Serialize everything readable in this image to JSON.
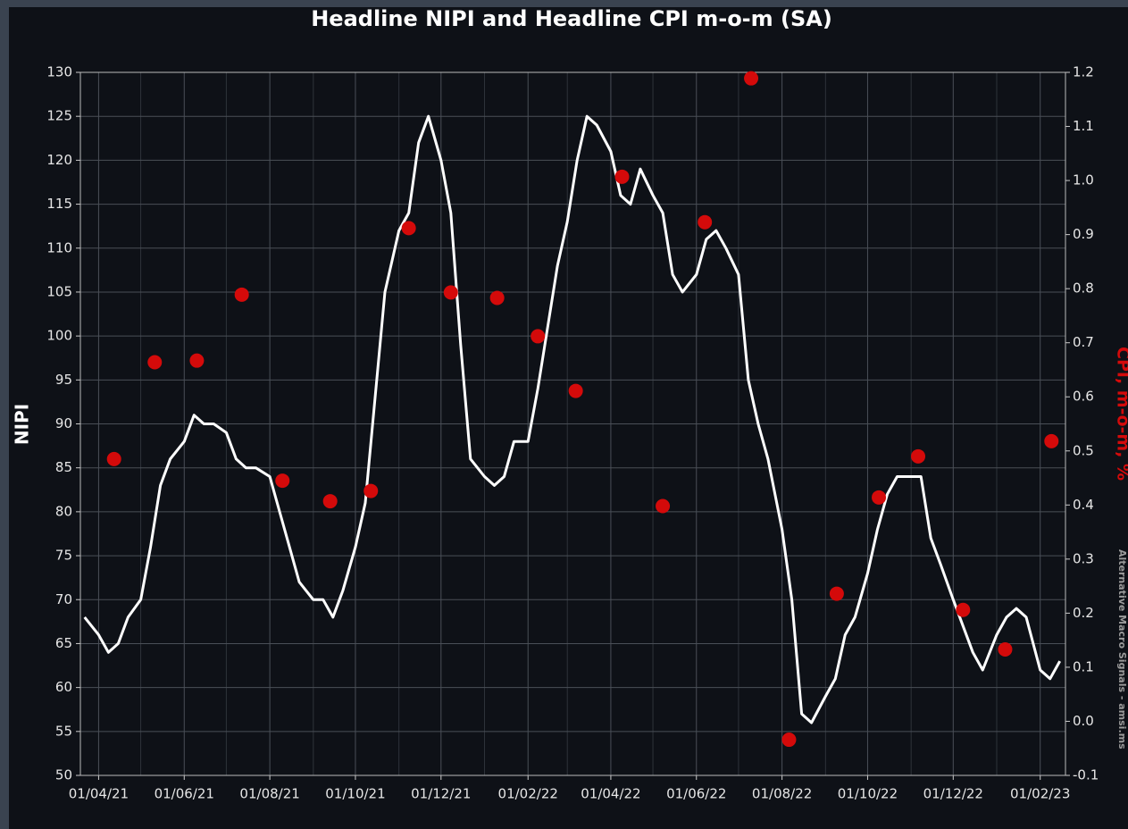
{
  "chart_data": {
    "type": "line",
    "title": "Headline NIPI and Headline CPI m-o-m (SA)",
    "ylabel": "NIPI",
    "y2label": "CPI, m-o-m, %",
    "annotation": "Alternative Macro Signals - amsi.ms",
    "xlim": [
      "2021-03-19",
      "2023-02-19"
    ],
    "xticks": [
      {
        "value": "2021-04-01",
        "label": "01/04/21"
      },
      {
        "value": "2021-06-01",
        "label": "01/06/21"
      },
      {
        "value": "2021-08-01",
        "label": "01/08/21"
      },
      {
        "value": "2021-10-01",
        "label": "01/10/21"
      },
      {
        "value": "2021-12-01",
        "label": "01/12/21"
      },
      {
        "value": "2022-02-01",
        "label": "01/02/22"
      },
      {
        "value": "2022-04-01",
        "label": "01/04/22"
      },
      {
        "value": "2022-06-01",
        "label": "01/06/22"
      },
      {
        "value": "2022-08-01",
        "label": "01/08/22"
      },
      {
        "value": "2022-10-01",
        "label": "01/10/22"
      },
      {
        "value": "2022-12-01",
        "label": "01/12/22"
      },
      {
        "value": "2023-02-01",
        "label": "01/02/23"
      }
    ],
    "xticks_minor": [
      "2021-05-01",
      "2021-07-01",
      "2021-09-01",
      "2021-11-01",
      "2022-01-01",
      "2022-03-01",
      "2022-05-01",
      "2022-07-01",
      "2022-09-01",
      "2022-11-01",
      "2023-01-01"
    ],
    "ylim": [
      50,
      130
    ],
    "yticks": [
      50,
      55,
      60,
      65,
      70,
      75,
      80,
      85,
      90,
      95,
      100,
      105,
      110,
      115,
      120,
      125,
      130
    ],
    "y2lim": [
      -0.1,
      1.2
    ],
    "y2ticks": [
      -0.1,
      {
        "value": 0,
        "label": "0.0"
      },
      0.1,
      0.2,
      0.3,
      0.4,
      0.5,
      0.6,
      0.7,
      0.8,
      0.9,
      {
        "value": 1,
        "label": "1.0"
      },
      1.1,
      1.2
    ],
    "grid": true,
    "series": [
      {
        "name": "NIPI",
        "type": "line",
        "color": "#ffffff",
        "x": [
          "2021-03-22",
          "2021-04-01",
          "2021-04-08",
          "2021-04-15",
          "2021-04-22",
          "2021-05-01",
          "2021-05-08",
          "2021-05-15",
          "2021-05-22",
          "2021-06-01",
          "2021-06-08",
          "2021-06-15",
          "2021-06-22",
          "2021-07-01",
          "2021-07-08",
          "2021-07-15",
          "2021-07-22",
          "2021-08-01",
          "2021-08-08",
          "2021-08-15",
          "2021-08-22",
          "2021-09-01",
          "2021-09-08",
          "2021-09-15",
          "2021-09-22",
          "2021-10-01",
          "2021-10-08",
          "2021-10-15",
          "2021-10-22",
          "2021-11-01",
          "2021-11-08",
          "2021-11-15",
          "2021-11-22",
          "2021-12-01",
          "2021-12-08",
          "2021-12-15",
          "2021-12-22",
          "2022-01-01",
          "2022-01-08",
          "2022-01-15",
          "2022-01-22",
          "2022-02-01",
          "2022-02-08",
          "2022-02-15",
          "2022-02-22",
          "2022-03-01",
          "2022-03-08",
          "2022-03-15",
          "2022-03-22",
          "2022-04-01",
          "2022-04-08",
          "2022-04-15",
          "2022-04-22",
          "2022-05-01",
          "2022-05-08",
          "2022-05-15",
          "2022-05-22",
          "2022-06-01",
          "2022-06-08",
          "2022-06-15",
          "2022-06-22",
          "2022-07-01",
          "2022-07-08",
          "2022-07-15",
          "2022-07-22",
          "2022-08-01",
          "2022-08-08",
          "2022-08-15",
          "2022-08-22",
          "2022-09-01",
          "2022-09-08",
          "2022-09-15",
          "2022-09-22",
          "2022-10-01",
          "2022-10-08",
          "2022-10-15",
          "2022-10-22",
          "2022-11-01",
          "2022-11-08",
          "2022-11-15",
          "2022-11-22",
          "2022-12-01",
          "2022-12-08",
          "2022-12-15",
          "2022-12-22",
          "2023-01-01",
          "2023-01-08",
          "2023-01-15",
          "2023-01-22",
          "2023-02-01",
          "2023-02-08",
          "2023-02-15"
        ],
        "values": [
          68,
          66,
          64,
          65,
          68,
          70,
          76,
          83,
          86,
          88,
          91,
          90,
          90,
          89,
          86,
          85,
          85,
          84,
          80,
          76,
          72,
          70,
          70,
          68,
          71,
          76,
          81,
          93,
          105,
          112,
          114,
          122,
          125,
          120,
          114,
          99,
          86,
          84,
          83,
          84,
          88,
          88,
          94,
          101,
          108,
          113,
          120,
          125,
          124,
          121,
          116,
          115,
          119,
          116,
          114,
          107,
          105,
          107,
          111,
          112,
          110,
          107,
          95,
          90,
          86,
          78,
          70,
          57,
          56,
          59,
          61,
          66,
          68,
          73,
          78,
          82,
          84,
          84,
          84,
          77,
          74,
          70,
          67,
          64,
          62,
          66,
          68,
          69,
          68,
          62,
          61,
          63
        ]
      },
      {
        "name": "CPI, m-o-m, %",
        "type": "scatter",
        "axis": "y2",
        "color": "#d40a0a",
        "x": [
          "2021-04-12",
          "2021-05-11",
          "2021-06-10",
          "2021-07-12",
          "2021-08-10",
          "2021-09-13",
          "2021-10-12",
          "2021-11-08",
          "2021-12-08",
          "2022-01-10",
          "2022-02-08",
          "2022-03-07",
          "2022-04-09",
          "2022-05-08",
          "2022-06-07",
          "2022-07-10",
          "2022-08-06",
          "2022-09-09",
          "2022-10-09",
          "2022-11-06",
          "2022-12-08",
          "2023-01-07",
          "2023-02-09"
        ],
        "values": [
          0.485,
          0.664,
          0.667,
          0.789,
          0.445,
          0.407,
          0.426,
          0.912,
          0.793,
          0.783,
          0.712,
          0.611,
          1.007,
          0.398,
          0.923,
          1.189,
          -0.034,
          0.236,
          0.414,
          0.49,
          0.206,
          0.133,
          0.518
        ]
      }
    ]
  }
}
